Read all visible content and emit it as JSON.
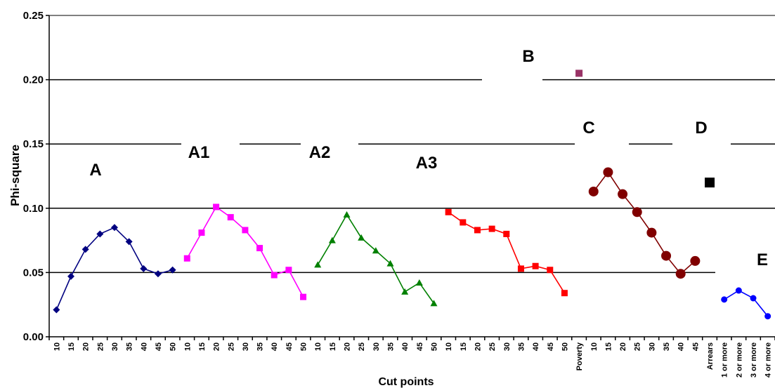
{
  "chart_data": {
    "type": "line",
    "title": "",
    "xlabel": "Cut points",
    "ylabel": "Phi-square",
    "ylim": [
      0,
      0.25
    ],
    "y_ticks": [
      "0.00",
      "0.05",
      "0.10",
      "0.15",
      "0.20",
      "0.25"
    ],
    "grid": true,
    "gridline_values": [
      0.05,
      0.1,
      0.15,
      0.2
    ],
    "groups": [
      {
        "label": "A",
        "color": "#000080",
        "marker": "diamond",
        "categories": [
          "10",
          "15",
          "20",
          "25",
          "30",
          "35",
          "40",
          "45",
          "50"
        ],
        "values": [
          0.021,
          0.047,
          0.068,
          0.08,
          0.085,
          0.074,
          0.053,
          0.049,
          0.052
        ]
      },
      {
        "label": "A1",
        "color": "#ff00ff",
        "marker": "square",
        "categories": [
          "10",
          "15",
          "20",
          "25",
          "30",
          "35",
          "40",
          "45",
          "50"
        ],
        "values": [
          0.061,
          0.081,
          0.101,
          0.093,
          0.083,
          0.069,
          0.048,
          0.052,
          0.031
        ]
      },
      {
        "label": "A2",
        "color": "#008000",
        "marker": "triangle",
        "categories": [
          "10",
          "15",
          "20",
          "25",
          "30",
          "35",
          "40",
          "45",
          "50"
        ],
        "values": [
          0.056,
          0.075,
          0.095,
          0.077,
          0.067,
          0.057,
          0.035,
          0.042,
          0.026
        ]
      },
      {
        "label": "A3",
        "color": "#ff0000",
        "marker": "square",
        "categories": [
          "10",
          "15",
          "20",
          "25",
          "30",
          "35",
          "40",
          "45",
          "50"
        ],
        "values": [
          0.097,
          0.089,
          0.083,
          0.084,
          0.08,
          0.053,
          0.055,
          0.052,
          0.034
        ]
      },
      {
        "label": "B",
        "color": "#993366",
        "marker": "square",
        "categories": [
          "Poverty"
        ],
        "values": [
          0.205
        ]
      },
      {
        "label": "C",
        "color": "#800000",
        "marker": "circle",
        "categories": [
          "10",
          "15",
          "20",
          "25",
          "30",
          "35",
          "40",
          "45"
        ],
        "values": [
          0.113,
          0.128,
          0.111,
          0.097,
          0.081,
          0.063,
          0.049,
          0.059
        ]
      },
      {
        "label": "D",
        "color": "#000000",
        "marker": "square",
        "categories": [
          "Arrears"
        ],
        "values": [
          0.12
        ]
      },
      {
        "label": "E",
        "color": "#0000ff",
        "marker": "circle",
        "categories": [
          "1 or more",
          "2 or more",
          "3 or more",
          "4 or more"
        ],
        "values": [
          0.029,
          0.036,
          0.03,
          0.016
        ]
      }
    ]
  }
}
